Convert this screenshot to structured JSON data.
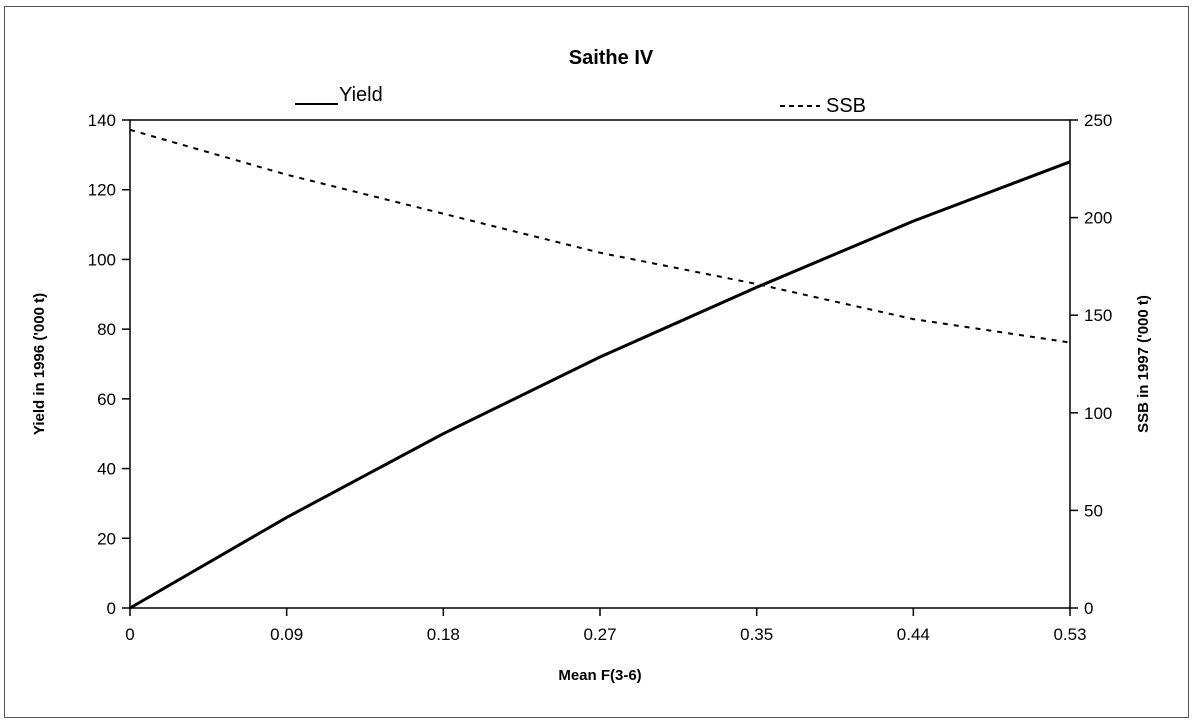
{
  "chart_data": {
    "type": "line",
    "title": "Saithe IV",
    "xlabel": "Mean F(3-6)",
    "ylabel_left": "Yield in 1996 ('000 t)",
    "ylabel_right": "SSB in 1997 ('000 t)",
    "x_ticks": [
      "0",
      "0.09",
      "0.18",
      "0.27",
      "0.35",
      "0.44",
      "0.53"
    ],
    "ylim_left": [
      0,
      140
    ],
    "ylim_right": [
      0,
      250
    ],
    "y_ticks_left": [
      "0",
      "20",
      "40",
      "60",
      "80",
      "100",
      "120",
      "140"
    ],
    "y_ticks_right": [
      "0",
      "50",
      "100",
      "150",
      "200",
      "250"
    ],
    "legend": [
      "Yield",
      "SSB"
    ],
    "grid": false,
    "series": [
      {
        "name": "Yield",
        "axis": "left",
        "style": "solid",
        "x": [
          0,
          0.09,
          0.18,
          0.27,
          0.35,
          0.44,
          0.53
        ],
        "y": [
          0,
          26,
          50,
          72,
          92,
          111,
          128
        ]
      },
      {
        "name": "SSB",
        "axis": "right",
        "style": "dashed",
        "x": [
          0,
          0.09,
          0.18,
          0.27,
          0.35,
          0.44,
          0.53
        ],
        "y": [
          245,
          222,
          202,
          182,
          166,
          148,
          136
        ]
      }
    ]
  }
}
